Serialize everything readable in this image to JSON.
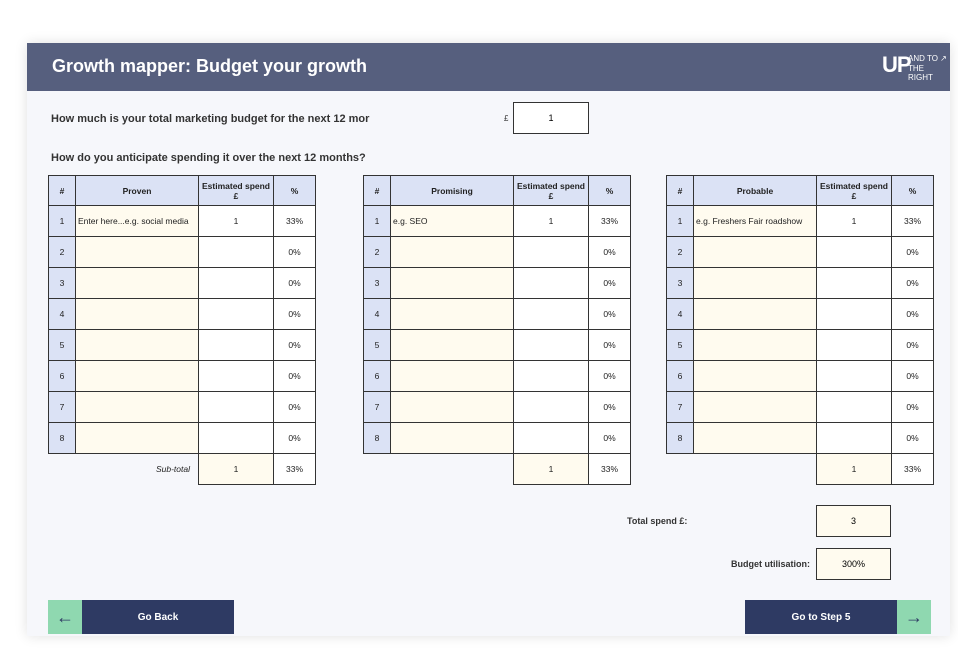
{
  "header": {
    "title": "Growth mapper: Budget your growth",
    "logo": {
      "main": "UP",
      "top": "AND TO ↗",
      "bottom": "THE RIGHT"
    }
  },
  "budget": {
    "question": "How much is your total marketing budget for the next 12 mor",
    "currency": "£",
    "value": 1
  },
  "spending": {
    "question": "How do you anticipate spending it over the next 12 months?"
  },
  "tables": [
    {
      "headers": [
        "#",
        "Proven",
        "Estimated spend £",
        "%"
      ],
      "rows": [
        {
          "n": 1,
          "item": "Enter here...e.g. social media",
          "spend": 1,
          "pct": "33%"
        },
        {
          "n": 2,
          "pct": "0%"
        },
        {
          "n": 3,
          "pct": "0%"
        },
        {
          "n": 4,
          "pct": "0%"
        },
        {
          "n": 5,
          "pct": "0%"
        },
        {
          "n": 6,
          "pct": "0%"
        },
        {
          "n": 7,
          "pct": "0%"
        },
        {
          "n": 8,
          "pct": "0%"
        }
      ],
      "subtotal": {
        "label": "Sub-total",
        "spend": 1,
        "pct": "33%"
      }
    },
    {
      "headers": [
        "#",
        "Promising",
        "Estimated spend £",
        "%"
      ],
      "rows": [
        {
          "n": 1,
          "item": "e.g. SEO",
          "spend": 1,
          "pct": "33%"
        },
        {
          "n": 2,
          "pct": "0%"
        },
        {
          "n": 3,
          "pct": "0%"
        },
        {
          "n": 4,
          "pct": "0%"
        },
        {
          "n": 5,
          "pct": "0%"
        },
        {
          "n": 6,
          "pct": "0%"
        },
        {
          "n": 7,
          "pct": "0%"
        },
        {
          "n": 8,
          "pct": "0%"
        }
      ],
      "subtotal": {
        "spend": 1,
        "pct": "33%"
      }
    },
    {
      "headers": [
        "#",
        "Probable",
        "Estimated spend £",
        "%"
      ],
      "rows": [
        {
          "n": 1,
          "item": "e.g. Freshers Fair roadshow",
          "spend": 1,
          "pct": "33%"
        },
        {
          "n": 2,
          "pct": "0%"
        },
        {
          "n": 3,
          "pct": "0%"
        },
        {
          "n": 4,
          "pct": "0%"
        },
        {
          "n": 5,
          "pct": "0%"
        },
        {
          "n": 6,
          "pct": "0%"
        },
        {
          "n": 7,
          "pct": "0%"
        },
        {
          "n": 8,
          "pct": "0%"
        }
      ],
      "subtotal": {
        "spend": 1,
        "pct": "33%"
      }
    }
  ],
  "totals": {
    "spend_label": "Total spend £:",
    "spend": 3,
    "utilisation_label": "Budget utilisation:",
    "utilisation": "300%"
  },
  "buttons": {
    "back": "Go Back",
    "next": "Go to Step 5"
  }
}
